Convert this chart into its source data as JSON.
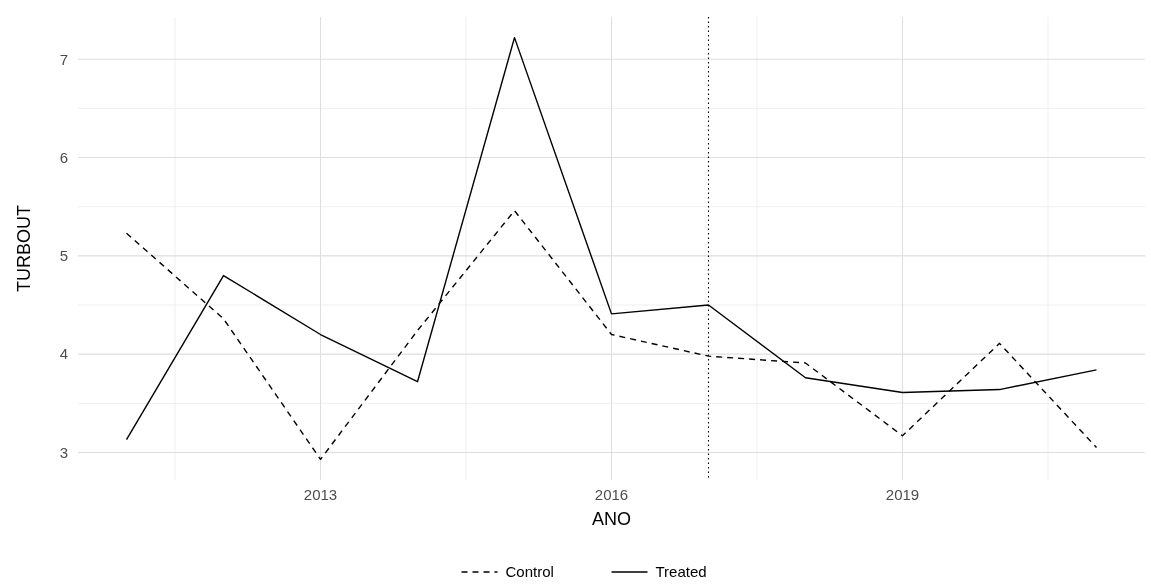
{
  "chart_data": {
    "type": "line",
    "xlabel": "ANO",
    "ylabel": "TURBOUT",
    "x": [
      2011,
      2012,
      2013,
      2014,
      2015,
      2016,
      2017,
      2018,
      2019,
      2020,
      2021
    ],
    "series": [
      {
        "name": "Control",
        "color": "#000000",
        "line_style": "dashed",
        "values": [
          5.23,
          4.36,
          2.93,
          4.24,
          5.46,
          4.2,
          3.98,
          3.91,
          3.17,
          4.11,
          3.05
        ]
      },
      {
        "name": "Treated",
        "color": "#000000",
        "line_style": "solid",
        "values": [
          3.13,
          4.8,
          4.2,
          3.72,
          7.22,
          4.41,
          4.5,
          3.76,
          3.61,
          3.64,
          3.84
        ]
      }
    ],
    "xlim": [
      2010.5,
      2021.5
    ],
    "xticks": [
      2013,
      2016,
      2019
    ],
    "ylim": [
      2.72,
      7.43
    ],
    "yticks": [
      3,
      4,
      5,
      6,
      7
    ],
    "grid": true,
    "legend": "bottom",
    "ref_lines": [
      {
        "axis": "x",
        "value": 2017,
        "line_style": "dotted",
        "color": "#000000"
      }
    ]
  }
}
